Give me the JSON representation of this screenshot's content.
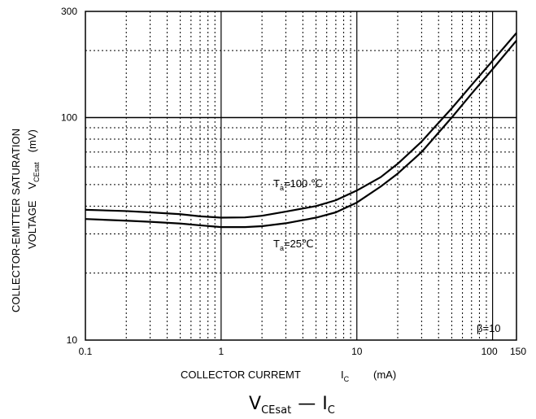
{
  "chart_data": {
    "type": "line",
    "x_scale": "log",
    "y_scale": "log",
    "xlim": [
      0.1,
      150
    ],
    "ylim": [
      10,
      300
    ],
    "grid": true,
    "x_ticks": [
      {
        "value": 0.1,
        "label": "0.1"
      },
      {
        "value": 1,
        "label": "1"
      },
      {
        "value": 10,
        "label": "10"
      },
      {
        "value": 100,
        "label": "100"
      },
      {
        "value": 150,
        "label": "150"
      }
    ],
    "y_ticks": [
      {
        "value": 10,
        "label": "10"
      },
      {
        "value": 100,
        "label": "100"
      },
      {
        "value": 300,
        "label": "300"
      }
    ],
    "xlabel": {
      "main": "COLLECTOR CURREMT",
      "symbol": "I",
      "symbol_sub": "C",
      "unit": "(mA)"
    },
    "ylabel": {
      "line1": "COLLECTOR-EMITTER SATURATION",
      "line2_main": "VOLTAGE",
      "line2_symbol": "V",
      "line2_sub": "CEsat",
      "line2_unit": "(mV)"
    },
    "caption": {
      "v": "V",
      "v_sub": "CEsat",
      "dash": "—",
      "i": "I",
      "i_sub": "C"
    },
    "annotations": {
      "beta": "β=10",
      "ta100": {
        "t": "T",
        "sub": "a",
        "rest": "=100 ℃"
      },
      "ta25": {
        "t": "T",
        "sub": "a",
        "rest": "=25℃"
      }
    },
    "series": [
      {
        "x": [
          0.1,
          0.2,
          0.3,
          0.5,
          0.7,
          1,
          1.5,
          2,
          3,
          5,
          7,
          10,
          15,
          20,
          30,
          50,
          70,
          100,
          150
        ],
        "values": [
          38.5,
          38,
          37.5,
          36.8,
          36,
          35.5,
          35.6,
          36.2,
          37.8,
          40,
          42.5,
          47,
          54,
          62,
          78,
          110,
          140,
          180,
          240
        ]
      },
      {
        "x": [
          0.1,
          0.2,
          0.3,
          0.5,
          0.7,
          1,
          1.5,
          2,
          3,
          5,
          7,
          10,
          15,
          20,
          30,
          50,
          70,
          100,
          150
        ],
        "values": [
          35,
          34.4,
          34,
          33.4,
          32.8,
          32.2,
          32.2,
          32.5,
          33.5,
          35.5,
          37.5,
          41.5,
          49,
          56,
          70,
          100,
          128,
          165,
          222
        ]
      }
    ]
  }
}
